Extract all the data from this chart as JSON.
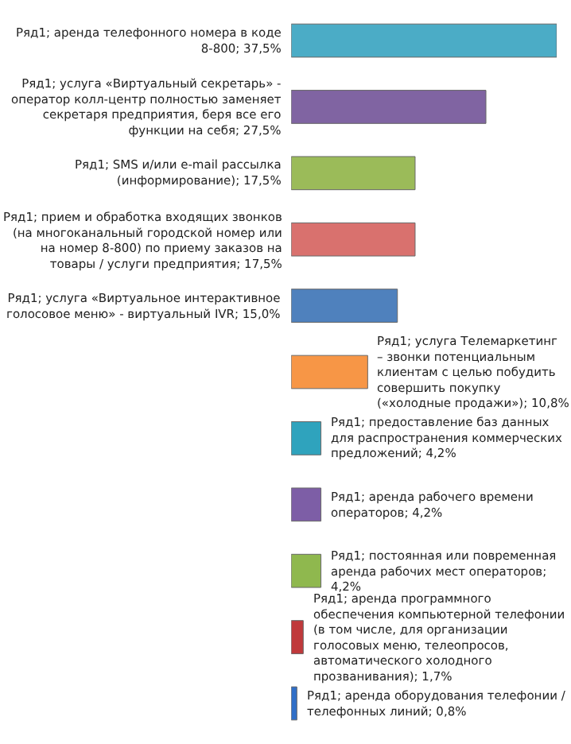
{
  "chart_data": {
    "type": "bar",
    "orientation": "horizontal",
    "categories": [
      null,
      null,
      null,
      null,
      null,
      null,
      null,
      null,
      null,
      null,
      null
    ],
    "values": [
      37.5,
      27.5,
      17.5,
      17.5,
      15.0,
      10.8,
      4.2,
      4.2,
      4.2,
      1.7,
      0.8
    ],
    "colors": [
      "#4bacc6",
      "#8064a2",
      "#9bbb59",
      "#d9716e",
      "#4f81bd",
      "#f79646",
      "#2fa3bd",
      "#7d5ea6",
      "#8fb84e",
      "#c0393b",
      "#2f6fc8"
    ],
    "value_labels": [
      "Ряд1; аренда телефонного номера в коде 8-800; 37,5%",
      "Ряд1; услуга «Виртуальный секретарь» - оператор колл-центр полностью заменяет секретаря предприятия, беря все его функции на себя; 27,5%",
      "Ряд1; SMS и/или e-mail рассылка (информирование); 17,5%",
      "Ряд1; прием и обработка входящих звонков (на многоканальный городской номер или на номер 8-800) по приему заказов на товары / услуги предприятия; 17,5%",
      "Ряд1; услуга «Виртуальное интерактивное голосовое меню» - виртуальный IVR; 15,0%",
      "Ряд1; услуга Телемаркетинг – звонки потенциальным клиентам с целью побудить совершить покупку («холодные продажи»); 10,8%",
      "Ряд1; предоставление баз данных для распространения коммерческих предложений; 4,2%",
      "Ряд1; аренда рабочего времени операторов; 4,2%",
      "Ряд1; постоянная или повременная аренда рабочих мест операторов; 4,2%",
      "Ряд1; аренда программного обеспечения компьютерной телефонии (в том числе, для организации голосовых меню, телеопросов, автоматического холодного прозванивания); 1,7%",
      "Ряд1; аренда оборудования телефонии / телефонных линий; 0,8%"
    ]
  }
}
